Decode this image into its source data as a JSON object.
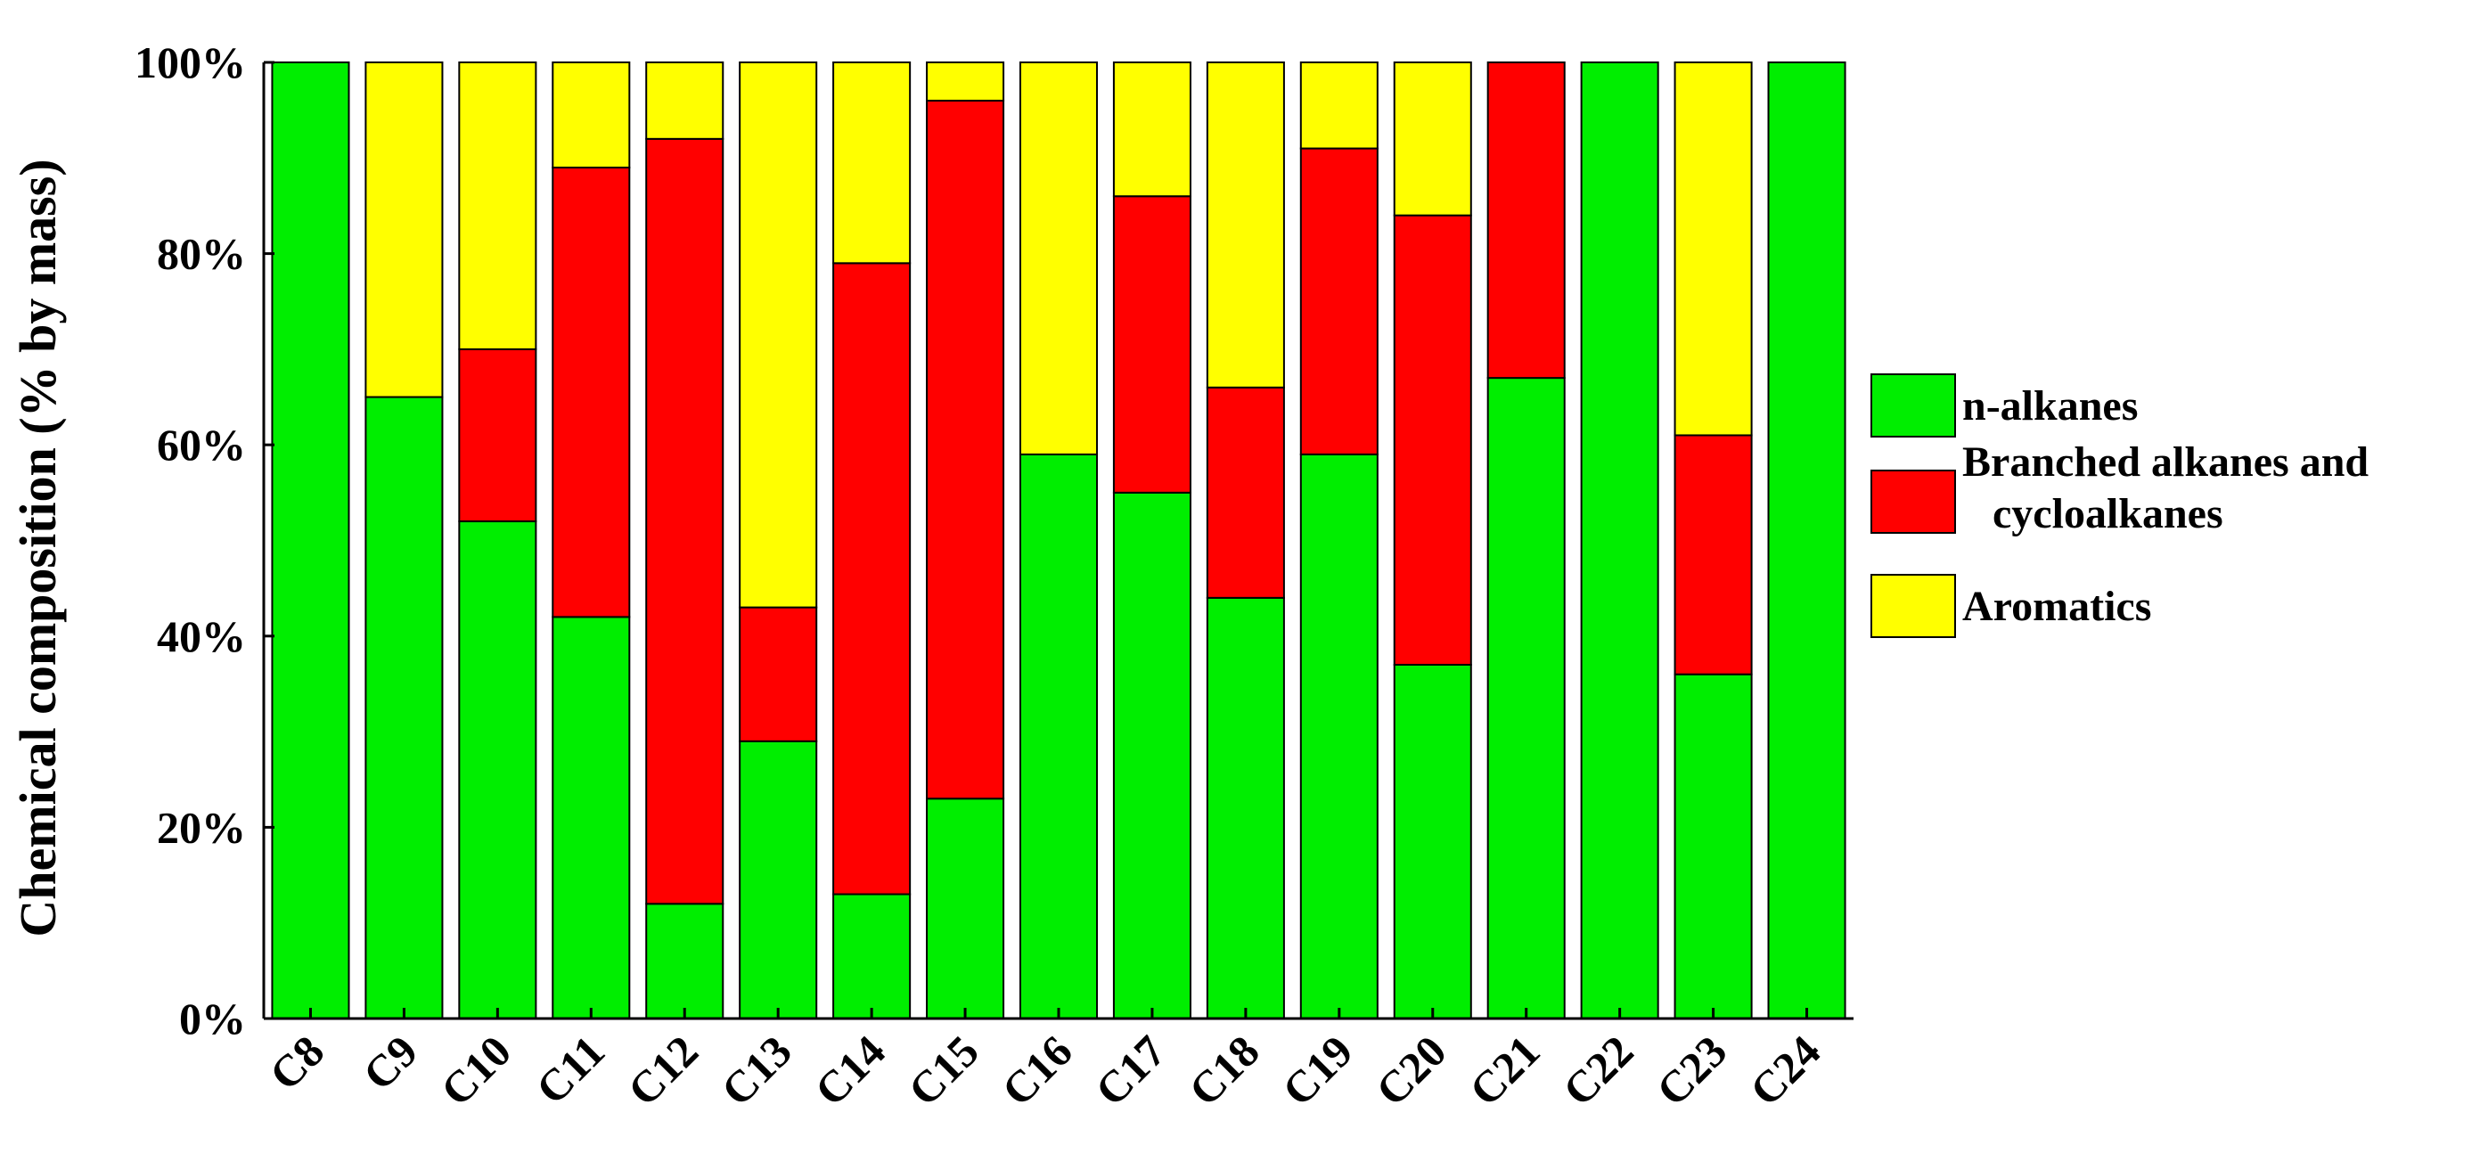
{
  "chart_data": {
    "type": "bar",
    "stacked": true,
    "title": "",
    "xlabel": "",
    "ylabel": "Chemical composition (% by mass)",
    "ylim": [
      0,
      100
    ],
    "yticks": [
      "0%",
      "20%",
      "40%",
      "60%",
      "80%",
      "100%"
    ],
    "categories": [
      "C8",
      "C9",
      "C10",
      "C11",
      "C12",
      "C13",
      "C14",
      "C15",
      "C16",
      "C17",
      "C18",
      "C19",
      "C20",
      "C21",
      "C22",
      "C23",
      "C24"
    ],
    "series": [
      {
        "name": "n-alkanes",
        "color": "#00ee00",
        "values": [
          100,
          65,
          52,
          42,
          12,
          29,
          13,
          23,
          59,
          55,
          44,
          59,
          37,
          67,
          100,
          36,
          100
        ]
      },
      {
        "name": "Branched alkanes and cycloalkanes",
        "color": "#ff0000",
        "values": [
          0,
          0,
          18,
          47,
          80,
          14,
          66,
          73,
          0,
          31,
          22,
          32,
          47,
          33,
          0,
          25,
          0
        ]
      },
      {
        "name": "Aromatics",
        "color": "#ffff00",
        "values": [
          0,
          35,
          30,
          11,
          8,
          57,
          21,
          4,
          41,
          14,
          34,
          9,
          16,
          0,
          0,
          39,
          0
        ]
      }
    ],
    "legend": {
      "position": "right",
      "entries": [
        {
          "lines": [
            "n-alkanes"
          ]
        },
        {
          "lines": [
            "Branched alkanes and",
            "cycloalkanes"
          ]
        },
        {
          "lines": [
            "Aromatics"
          ]
        }
      ]
    },
    "grid": false
  }
}
